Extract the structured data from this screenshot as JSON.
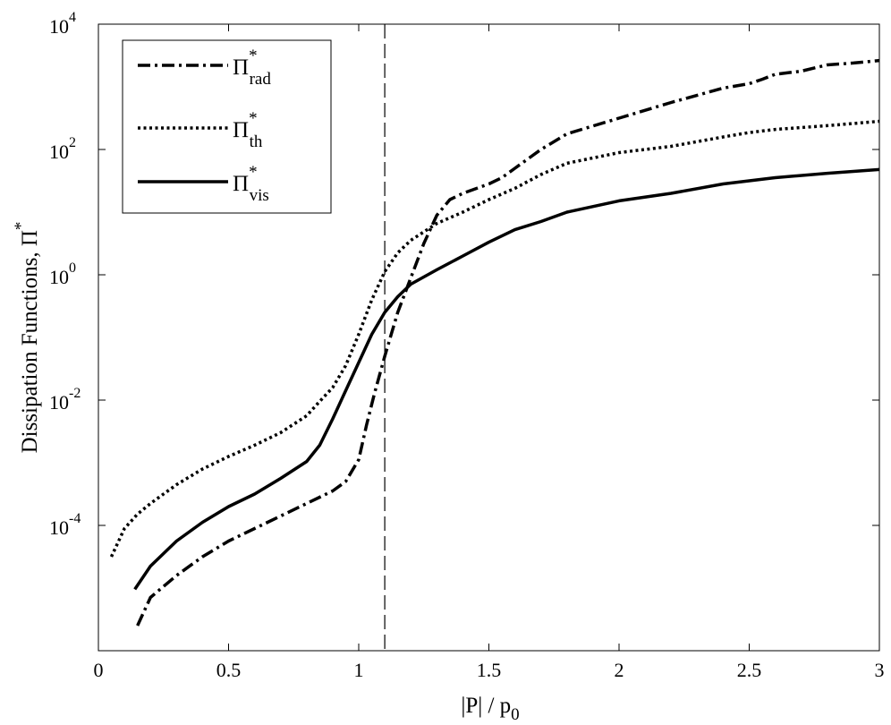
{
  "chart_data": {
    "type": "line",
    "title": "",
    "xlabel": {
      "base": "|P| / p",
      "sub": "0"
    },
    "ylabel": {
      "base": "Dissipation Functions, Π",
      "sup": "*"
    },
    "xlim": [
      0,
      3
    ],
    "ylim_log10": [
      -6,
      4
    ],
    "y_scale": "log",
    "grid": false,
    "legend_position": "top-left",
    "x_ticks": [
      {
        "value": 0,
        "label": "0"
      },
      {
        "value": 0.5,
        "label": "0.5"
      },
      {
        "value": 1,
        "label": "1"
      },
      {
        "value": 1.5,
        "label": "1.5"
      },
      {
        "value": 2,
        "label": "2"
      },
      {
        "value": 2.5,
        "label": "2.5"
      },
      {
        "value": 3,
        "label": "3"
      }
    ],
    "y_ticks": [
      {
        "exp": -4,
        "base": "10",
        "sup": "-4"
      },
      {
        "exp": -2,
        "base": "10",
        "sup": "-2"
      },
      {
        "exp": 0,
        "base": "10",
        "sup": "0"
      },
      {
        "exp": 2,
        "base": "10",
        "sup": "2"
      },
      {
        "exp": 4,
        "base": "10",
        "sup": "4"
      }
    ],
    "reference_line": {
      "x": 1.1,
      "style": "dashed"
    },
    "series": [
      {
        "name": "rad",
        "label": {
          "base": "Π",
          "sup": "*",
          "sub": "rad"
        },
        "style": "dashdot",
        "x": [
          0.15,
          0.2,
          0.3,
          0.4,
          0.5,
          0.6,
          0.7,
          0.8,
          0.9,
          0.95,
          1.0,
          1.03,
          1.06,
          1.1,
          1.15,
          1.2,
          1.25,
          1.3,
          1.35,
          1.4,
          1.5,
          1.55,
          1.6,
          1.7,
          1.8,
          2.0,
          2.2,
          2.4,
          2.5,
          2.55,
          2.6,
          2.7,
          2.8,
          2.9,
          3.0
        ],
        "log10_y": [
          -5.6,
          -5.15,
          -4.8,
          -4.5,
          -4.25,
          -4.05,
          -3.85,
          -3.65,
          -3.45,
          -3.3,
          -2.95,
          -2.4,
          -1.9,
          -1.3,
          -0.6,
          -0.05,
          0.5,
          0.95,
          1.2,
          1.3,
          1.45,
          1.55,
          1.7,
          2.0,
          2.25,
          2.5,
          2.75,
          2.98,
          3.05,
          3.12,
          3.2,
          3.25,
          3.35,
          3.38,
          3.42
        ]
      },
      {
        "name": "th",
        "label": {
          "base": "Π",
          "sup": "*",
          "sub": "th"
        },
        "style": "dotted",
        "x": [
          0.05,
          0.1,
          0.15,
          0.2,
          0.3,
          0.4,
          0.5,
          0.6,
          0.7,
          0.8,
          0.85,
          0.9,
          0.95,
          1.0,
          1.05,
          1.1,
          1.15,
          1.2,
          1.3,
          1.4,
          1.5,
          1.6,
          1.7,
          1.8,
          2.0,
          2.2,
          2.4,
          2.5,
          2.6,
          2.8,
          3.0
        ],
        "log10_y": [
          -4.5,
          -4.05,
          -3.82,
          -3.65,
          -3.35,
          -3.1,
          -2.9,
          -2.72,
          -2.52,
          -2.25,
          -2.02,
          -1.8,
          -1.45,
          -0.95,
          -0.4,
          0.05,
          0.35,
          0.55,
          0.82,
          1.0,
          1.2,
          1.38,
          1.6,
          1.78,
          1.95,
          2.05,
          2.2,
          2.27,
          2.32,
          2.38,
          2.45
        ]
      },
      {
        "name": "vis",
        "label": {
          "base": "Π",
          "sup": "*",
          "sub": "vis"
        },
        "style": "solid",
        "x": [
          0.14,
          0.2,
          0.3,
          0.4,
          0.5,
          0.6,
          0.7,
          0.8,
          0.85,
          0.9,
          0.95,
          1.0,
          1.05,
          1.1,
          1.15,
          1.2,
          1.3,
          1.4,
          1.5,
          1.6,
          1.7,
          1.8,
          2.0,
          2.2,
          2.4,
          2.5,
          2.6,
          2.8,
          3.0
        ],
        "log10_y": [
          -5.02,
          -4.65,
          -4.25,
          -3.95,
          -3.7,
          -3.5,
          -3.25,
          -2.98,
          -2.72,
          -2.3,
          -1.85,
          -1.4,
          -0.95,
          -0.6,
          -0.35,
          -0.15,
          0.08,
          0.3,
          0.52,
          0.72,
          0.85,
          1.0,
          1.18,
          1.3,
          1.45,
          1.5,
          1.55,
          1.62,
          1.68
        ]
      }
    ]
  }
}
